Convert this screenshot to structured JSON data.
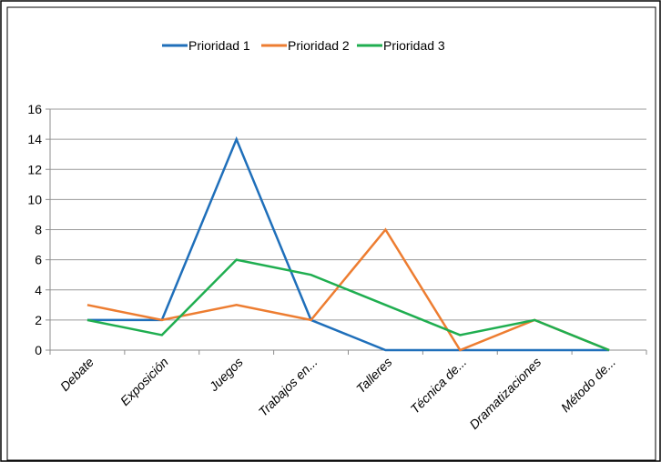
{
  "chart_data": {
    "type": "line",
    "title": "",
    "xlabel": "",
    "ylabel": "",
    "ylim": [
      0,
      16
    ],
    "yticks": [
      0,
      2,
      4,
      6,
      8,
      10,
      12,
      14,
      16
    ],
    "grid": true,
    "legend_position": "top",
    "categories": [
      "Debate",
      "Exposición",
      "Juegos",
      "Trabajos en...",
      "Talleres",
      "Técnica de...",
      "Dramatizaciones",
      "Método de..."
    ],
    "series": [
      {
        "name": "Prioridad 1",
        "color": "#1f6fba",
        "values": [
          2,
          2,
          14,
          2,
          0,
          0,
          0,
          0
        ]
      },
      {
        "name": "Prioridad 2",
        "color": "#ed7d31",
        "values": [
          3,
          2,
          3,
          2,
          8,
          0,
          2,
          0
        ]
      },
      {
        "name": "Prioridad 3",
        "color": "#1fae50",
        "values": [
          2,
          1,
          6,
          5,
          3,
          1,
          2,
          0
        ]
      }
    ]
  }
}
